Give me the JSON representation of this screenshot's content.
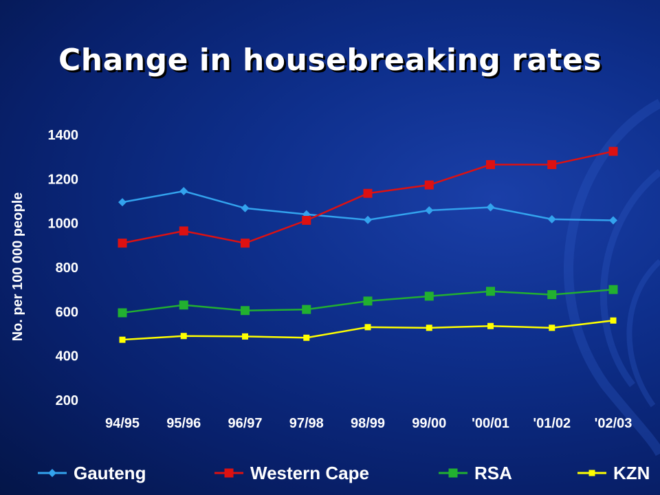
{
  "chart_data": {
    "type": "line",
    "title": "Change in housebreaking rates",
    "ylabel": "No. per 100 000 people",
    "xlabel": "",
    "categories": [
      "94/95",
      "95/96",
      "96/97",
      "97/98",
      "98/99",
      "99/00",
      "'00/01",
      "'01/02",
      "'02/03"
    ],
    "ylim": [
      200,
      1400
    ],
    "yticks": [
      200,
      400,
      600,
      800,
      1000,
      1200,
      1400
    ],
    "grid": false,
    "legend": "bottom",
    "series": [
      {
        "name": "Gauteng",
        "color": "#33a3ee",
        "marker": "diamond",
        "values": [
          1095,
          1145,
          1068,
          1040,
          1015,
          1058,
          1072,
          1018,
          1013
        ]
      },
      {
        "name": "Western Cape",
        "color": "#dd1111",
        "marker": "square",
        "values": [
          910,
          965,
          910,
          1013,
          1135,
          1173,
          1265,
          1265,
          1325
        ]
      },
      {
        "name": "RSA",
        "color": "#22b030",
        "marker": "square",
        "values": [
          595,
          630,
          605,
          610,
          648,
          670,
          692,
          677,
          700
        ]
      },
      {
        "name": "KZN",
        "color": "#ffff00",
        "marker": "small-square",
        "values": [
          473,
          490,
          488,
          482,
          530,
          527,
          535,
          527,
          560
        ]
      }
    ]
  }
}
